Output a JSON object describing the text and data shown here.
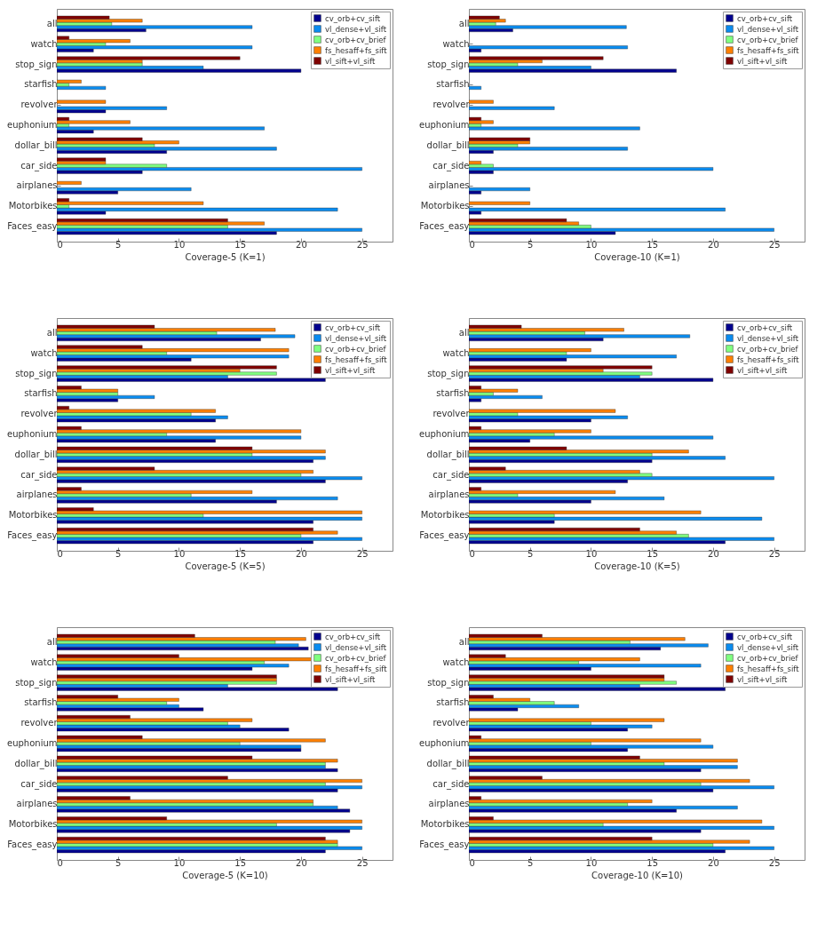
{
  "chart_data": [
    {
      "type": "bar",
      "orientation": "horizontal",
      "xlabel": "Coverage-5 (K=1)",
      "xlim": [
        0,
        27.5
      ],
      "xticks": [
        0,
        5,
        10,
        15,
        20,
        25
      ],
      "legend": "top right",
      "categories": [
        "all",
        "watch",
        "stop_sign",
        "starfish",
        "revolver",
        "euphonium",
        "dollar_bill",
        "car_side",
        "airplanes",
        "Motorbikes",
        "Faces_easy"
      ],
      "series": [
        {
          "name": "cv_orb+cv_sift",
          "color": "#00008f",
          "values": [
            7.3,
            3,
            20,
            0,
            4,
            3,
            9,
            7,
            5,
            4,
            18
          ]
        },
        {
          "name": "vl_dense+vl_sift",
          "color": "#0a8cf0",
          "values": [
            16,
            16,
            12,
            4,
            9,
            17,
            18,
            25,
            11,
            23,
            25
          ]
        },
        {
          "name": "cv_orb+cv_brief",
          "color": "#80ff80",
          "values": [
            4.5,
            4,
            7,
            1,
            0,
            1,
            8,
            9,
            0,
            1,
            14
          ]
        },
        {
          "name": "fs_hesaff+fs_sift",
          "color": "#ff8000",
          "values": [
            7,
            6,
            7,
            2,
            4,
            6,
            10,
            4,
            2,
            12,
            17
          ]
        },
        {
          "name": "vl_sift+vl_sift",
          "color": "#800000",
          "values": [
            4.3,
            1,
            15,
            0,
            0,
            1,
            7,
            4,
            0,
            1,
            14
          ]
        }
      ]
    },
    {
      "type": "bar",
      "orientation": "horizontal",
      "xlabel": "Coverage-10 (K=1)",
      "xlim": [
        0,
        27.5
      ],
      "xticks": [
        0,
        5,
        10,
        15,
        20,
        25
      ],
      "legend": "top right",
      "categories": [
        "all",
        "watch",
        "stop_sign",
        "starfish",
        "revolver",
        "euphonium",
        "dollar_bill",
        "car_side",
        "airplanes",
        "Motorbikes",
        "Faces_easy"
      ],
      "series": [
        {
          "name": "cv_orb+cv_sift",
          "color": "#00008f",
          "values": [
            3.6,
            1,
            17,
            0,
            0,
            0,
            2,
            2,
            1,
            1,
            12
          ]
        },
        {
          "name": "vl_dense+vl_sift",
          "color": "#0a8cf0",
          "values": [
            12.9,
            13,
            10,
            1,
            7,
            14,
            13,
            20,
            5,
            21,
            25
          ]
        },
        {
          "name": "cv_orb+cv_brief",
          "color": "#80ff80",
          "values": [
            2.2,
            0,
            4,
            0,
            0,
            1,
            4,
            2,
            0,
            0,
            10
          ]
        },
        {
          "name": "fs_hesaff+fs_sift",
          "color": "#ff8000",
          "values": [
            3,
            0,
            6,
            0,
            2,
            2,
            5,
            1,
            0,
            5,
            9
          ]
        },
        {
          "name": "vl_sift+vl_sift",
          "color": "#800000",
          "values": [
            2.5,
            0,
            11,
            0,
            0,
            1,
            5,
            0,
            0,
            0,
            8
          ]
        }
      ]
    },
    {
      "type": "bar",
      "orientation": "horizontal",
      "xlabel": "Coverage-5 (K=5)",
      "xlim": [
        0,
        27.5
      ],
      "xticks": [
        0,
        5,
        10,
        15,
        20,
        25
      ],
      "legend": "top right",
      "categories": [
        "all",
        "watch",
        "stop_sign",
        "starfish",
        "revolver",
        "euphonium",
        "dollar_bill",
        "car_side",
        "airplanes",
        "Motorbikes",
        "Faces_easy"
      ],
      "series": [
        {
          "name": "cv_orb+cv_sift",
          "color": "#00008f",
          "values": [
            16.7,
            11,
            22,
            5,
            13,
            13,
            21,
            22,
            18,
            21,
            21
          ]
        },
        {
          "name": "vl_dense+vl_sift",
          "color": "#0a8cf0",
          "values": [
            19.5,
            19,
            14,
            8,
            14,
            20,
            22,
            25,
            23,
            25,
            25
          ]
        },
        {
          "name": "cv_orb+cv_brief",
          "color": "#80ff80",
          "values": [
            13.1,
            9,
            18,
            5,
            11,
            9,
            16,
            20,
            11,
            12,
            20
          ]
        },
        {
          "name": "fs_hesaff+fs_sift",
          "color": "#ff8000",
          "values": [
            17.9,
            19,
            15,
            5,
            13,
            20,
            22,
            21,
            16,
            25,
            23
          ]
        },
        {
          "name": "vl_sift+vl_sift",
          "color": "#800000",
          "values": [
            8,
            7,
            18,
            2,
            1,
            2,
            16,
            8,
            2,
            3,
            21
          ]
        }
      ]
    },
    {
      "type": "bar",
      "orientation": "horizontal",
      "xlabel": "Coverage-10 (K=5)",
      "xlim": [
        0,
        27.5
      ],
      "xticks": [
        0,
        5,
        10,
        15,
        20,
        25
      ],
      "legend": "top right",
      "categories": [
        "all",
        "watch",
        "stop_sign",
        "starfish",
        "revolver",
        "euphonium",
        "dollar_bill",
        "car_side",
        "airplanes",
        "Motorbikes",
        "Faces_easy"
      ],
      "series": [
        {
          "name": "cv_orb+cv_sift",
          "color": "#00008f",
          "values": [
            11,
            8,
            20,
            1,
            10,
            5,
            15,
            13,
            10,
            7,
            21
          ]
        },
        {
          "name": "vl_dense+vl_sift",
          "color": "#0a8cf0",
          "values": [
            18.1,
            17,
            14,
            6,
            13,
            20,
            21,
            25,
            16,
            24,
            25
          ]
        },
        {
          "name": "cv_orb+cv_brief",
          "color": "#80ff80",
          "values": [
            9.5,
            8,
            15,
            2,
            4,
            7,
            15,
            15,
            4,
            7,
            18
          ]
        },
        {
          "name": "fs_hesaff+fs_sift",
          "color": "#ff8000",
          "values": [
            12.7,
            10,
            11,
            4,
            12,
            10,
            18,
            14,
            12,
            19,
            17
          ]
        },
        {
          "name": "vl_sift+vl_sift",
          "color": "#800000",
          "values": [
            4.3,
            0,
            15,
            1,
            0,
            1,
            8,
            3,
            1,
            0,
            14
          ]
        }
      ]
    },
    {
      "type": "bar",
      "orientation": "horizontal",
      "xlabel": "Coverage-5 (K=10)",
      "xlim": [
        0,
        27.5
      ],
      "xticks": [
        0,
        5,
        10,
        15,
        20,
        25
      ],
      "legend": "top right",
      "categories": [
        "all",
        "watch",
        "stop_sign",
        "starfish",
        "revolver",
        "euphonium",
        "dollar_bill",
        "car_side",
        "airplanes",
        "Motorbikes",
        "Faces_easy"
      ],
      "series": [
        {
          "name": "cv_orb+cv_sift",
          "color": "#00008f",
          "values": [
            20.6,
            16,
            23,
            12,
            19,
            20,
            23,
            23,
            24,
            24,
            22
          ]
        },
        {
          "name": "vl_dense+vl_sift",
          "color": "#0a8cf0",
          "values": [
            19.8,
            19,
            14,
            10,
            15,
            20,
            22,
            25,
            23,
            25,
            25
          ]
        },
        {
          "name": "cv_orb+cv_brief",
          "color": "#80ff80",
          "values": [
            17.9,
            17,
            18,
            9,
            14,
            15,
            22,
            22,
            21,
            18,
            23
          ]
        },
        {
          "name": "fs_hesaff+fs_sift",
          "color": "#ff8000",
          "values": [
            20.4,
            21,
            18,
            10,
            16,
            22,
            23,
            25,
            21,
            25,
            23
          ]
        },
        {
          "name": "vl_sift+vl_sift",
          "color": "#800000",
          "values": [
            11.3,
            10,
            18,
            5,
            6,
            7,
            16,
            14,
            6,
            9,
            22
          ]
        }
      ]
    },
    {
      "type": "bar",
      "orientation": "horizontal",
      "xlabel": "Coverage-10 (K=10)",
      "xlim": [
        0,
        27.5
      ],
      "xticks": [
        0,
        5,
        10,
        15,
        20,
        25
      ],
      "legend": "top right",
      "categories": [
        "all",
        "watch",
        "stop_sign",
        "starfish",
        "revolver",
        "euphonium",
        "dollar_bill",
        "car_side",
        "airplanes",
        "Motorbikes",
        "Faces_easy"
      ],
      "series": [
        {
          "name": "cv_orb+cv_sift",
          "color": "#00008f",
          "values": [
            15.7,
            10,
            21,
            4,
            13,
            13,
            19,
            20,
            17,
            19,
            21
          ]
        },
        {
          "name": "vl_dense+vl_sift",
          "color": "#0a8cf0",
          "values": [
            19.6,
            19,
            14,
            9,
            15,
            20,
            22,
            25,
            22,
            25,
            25
          ]
        },
        {
          "name": "cv_orb+cv_brief",
          "color": "#80ff80",
          "values": [
            13.2,
            9,
            17,
            7,
            10,
            10,
            16,
            19,
            13,
            11,
            20
          ]
        },
        {
          "name": "fs_hesaff+fs_sift",
          "color": "#ff8000",
          "values": [
            17.7,
            14,
            16,
            5,
            16,
            19,
            22,
            23,
            15,
            24,
            23
          ]
        },
        {
          "name": "vl_sift+vl_sift",
          "color": "#800000",
          "values": [
            6,
            3,
            16,
            2,
            0,
            1,
            14,
            6,
            1,
            2,
            15
          ]
        }
      ]
    }
  ]
}
